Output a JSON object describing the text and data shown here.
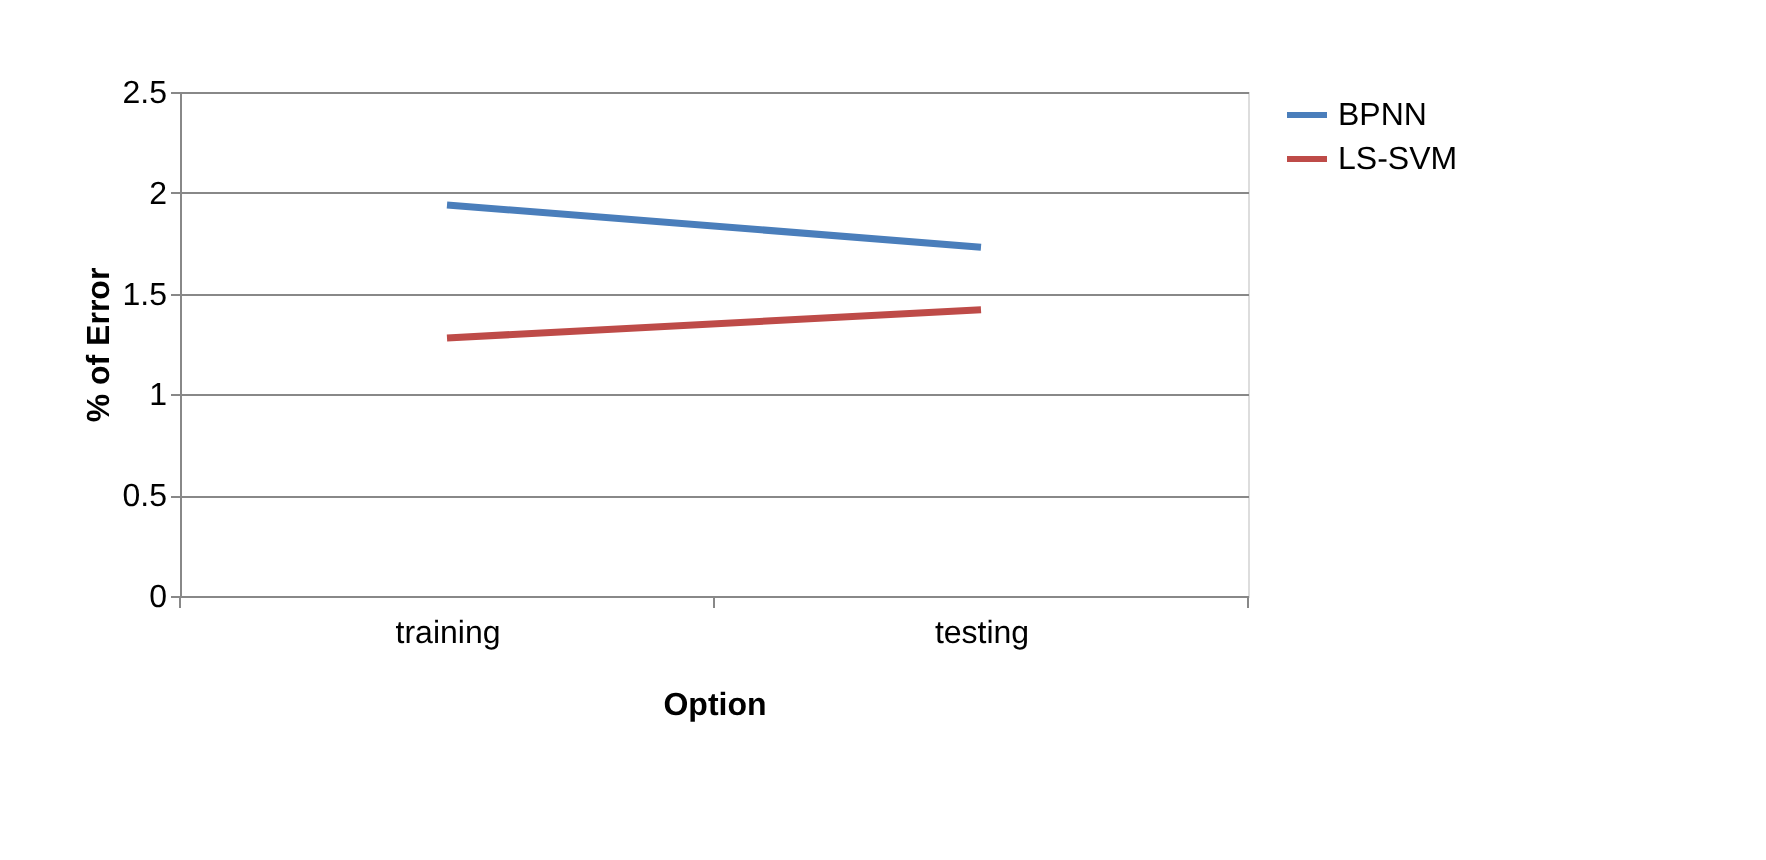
{
  "chart_data": {
    "type": "line",
    "xlabel": "Option",
    "ylabel": "% of Error",
    "categories": [
      "training",
      "testing"
    ],
    "series": [
      {
        "name": "BPNN",
        "color": "#4a7ebb",
        "values": [
          1.94,
          1.73
        ]
      },
      {
        "name": "LS-SVM",
        "color": "#be4b48",
        "values": [
          1.28,
          1.42
        ]
      }
    ],
    "ylim": [
      0,
      2.5
    ],
    "yticks": [
      0,
      0.5,
      1,
      1.5,
      2,
      2.5
    ],
    "grid": "y",
    "legend": "right",
    "marker": "none",
    "line_style": "solid"
  }
}
